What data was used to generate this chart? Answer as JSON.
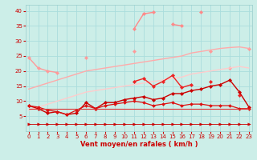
{
  "x": [
    0,
    1,
    2,
    3,
    4,
    5,
    6,
    7,
    8,
    9,
    10,
    11,
    12,
    13,
    14,
    15,
    16,
    17,
    18,
    19,
    20,
    21,
    22,
    23
  ],
  "series": [
    {
      "name": "pink_spiky_top",
      "color": "#ff8888",
      "linewidth": 1.0,
      "marker": "D",
      "markersize": 2.2,
      "y": [
        null,
        null,
        null,
        null,
        null,
        null,
        null,
        null,
        null,
        null,
        null,
        34.0,
        39.0,
        39.5,
        null,
        35.5,
        35.0,
        null,
        39.5,
        null,
        null,
        null,
        null,
        null
      ]
    },
    {
      "name": "pink_connected_upper",
      "color": "#ff9999",
      "linewidth": 1.0,
      "marker": "D",
      "markersize": 2.2,
      "y": [
        24.5,
        21.0,
        20.0,
        19.5,
        null,
        null,
        24.5,
        null,
        null,
        null,
        null,
        26.5,
        null,
        null,
        null,
        null,
        null,
        null,
        null,
        26.5,
        null,
        21.0,
        null,
        27.5
      ]
    },
    {
      "name": "trend_upper",
      "color": "#ffaaaa",
      "linewidth": 1.0,
      "marker": null,
      "markersize": 0,
      "y": [
        14.0,
        15.0,
        16.0,
        17.0,
        18.0,
        19.0,
        20.0,
        20.5,
        21.0,
        21.5,
        22.0,
        22.5,
        23.0,
        23.5,
        24.0,
        24.5,
        25.0,
        26.0,
        26.5,
        27.0,
        27.5,
        27.8,
        28.0,
        27.5
      ]
    },
    {
      "name": "trend_lower",
      "color": "#ffcccc",
      "linewidth": 1.0,
      "marker": null,
      "markersize": 0,
      "y": [
        7.0,
        8.0,
        9.0,
        10.0,
        11.0,
        12.0,
        13.0,
        13.5,
        14.0,
        14.5,
        15.0,
        15.5,
        16.0,
        16.5,
        17.0,
        17.5,
        18.0,
        19.0,
        19.5,
        20.0,
        20.5,
        21.0,
        21.5,
        21.0
      ]
    },
    {
      "name": "red_upper_jagged",
      "color": "#ee2222",
      "linewidth": 1.0,
      "marker": "D",
      "markersize": 2.2,
      "y": [
        null,
        null,
        null,
        null,
        null,
        null,
        null,
        null,
        null,
        null,
        null,
        16.5,
        17.5,
        15.0,
        16.5,
        18.5,
        14.5,
        15.5,
        null,
        16.5,
        null,
        null,
        12.0,
        null
      ]
    },
    {
      "name": "red_growing",
      "color": "#cc0000",
      "linewidth": 1.0,
      "marker": "D",
      "markersize": 2.2,
      "y": [
        8.5,
        7.5,
        6.0,
        6.5,
        5.5,
        6.0,
        9.5,
        7.5,
        9.5,
        9.5,
        10.5,
        11.0,
        11.5,
        10.5,
        11.0,
        12.5,
        12.5,
        13.5,
        14.0,
        15.0,
        15.5,
        17.0,
        13.0,
        8.0
      ]
    },
    {
      "name": "red_flat_jagged",
      "color": "#dd1111",
      "linewidth": 0.9,
      "marker": "D",
      "markersize": 2.0,
      "y": [
        8.5,
        8.0,
        7.0,
        6.5,
        5.5,
        7.0,
        8.5,
        7.5,
        8.5,
        9.0,
        9.5,
        10.0,
        9.5,
        8.5,
        9.0,
        9.5,
        8.5,
        9.0,
        9.0,
        8.5,
        8.5,
        8.5,
        7.5,
        7.5
      ]
    },
    {
      "name": "red_flat_bottom",
      "color": "#dd3333",
      "linewidth": 0.8,
      "marker": null,
      "markersize": 0,
      "y": [
        7.5,
        7.5,
        7.5,
        7.5,
        7.5,
        7.5,
        7.5,
        7.5,
        7.5,
        7.5,
        7.5,
        7.5,
        7.5,
        7.5,
        7.5,
        7.5,
        7.5,
        7.5,
        7.5,
        7.5,
        7.5,
        7.5,
        7.5,
        7.5
      ]
    },
    {
      "name": "arrow_row",
      "color": "#cc0000",
      "linewidth": 0.6,
      "marker": ">",
      "markersize": 2.5,
      "linestyle": "solid",
      "y": [
        2.5,
        2.5,
        2.5,
        2.5,
        2.5,
        2.5,
        2.5,
        2.5,
        2.5,
        2.5,
        2.5,
        2.5,
        2.5,
        2.5,
        2.5,
        2.5,
        2.5,
        2.5,
        2.5,
        2.5,
        2.5,
        2.5,
        2.5,
        2.5
      ]
    }
  ],
  "xlim": [
    -0.3,
    23.3
  ],
  "ylim": [
    0,
    42
  ],
  "yticks": [
    5,
    10,
    15,
    20,
    25,
    30,
    35,
    40
  ],
  "xticks": [
    0,
    1,
    2,
    3,
    4,
    5,
    6,
    7,
    8,
    9,
    10,
    11,
    12,
    13,
    14,
    15,
    16,
    17,
    18,
    19,
    20,
    21,
    22,
    23
  ],
  "xlabel": "Vent moyen/en rafales ( km/h )",
  "background_color": "#cceee8",
  "grid_color": "#aadddd",
  "tick_color": "#cc0000",
  "label_color": "#cc0000"
}
